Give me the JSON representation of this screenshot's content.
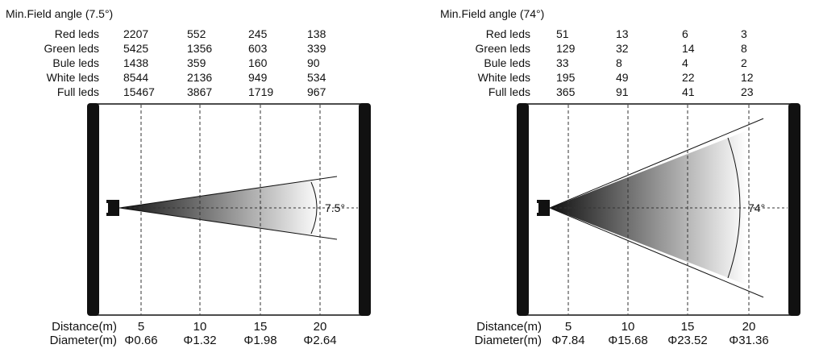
{
  "panels": [
    {
      "title": "Min.Field angle (7.5°)",
      "rows": [
        {
          "label": "Red leds",
          "values": [
            "2207",
            "552",
            "245",
            "138"
          ]
        },
        {
          "label": "Green leds",
          "values": [
            "5425",
            "1356",
            "603",
            "339"
          ]
        },
        {
          "label": "Bule leds",
          "values": [
            "1438",
            "359",
            "160",
            "90"
          ]
        },
        {
          "label": "White leds",
          "values": [
            "8544",
            "2136",
            "949",
            "534"
          ]
        },
        {
          "label": "Full leds",
          "values": [
            "15467",
            "3867",
            "1719",
            "967"
          ]
        }
      ],
      "angle_label": "7.5°",
      "distance_label": "Distance(m)",
      "distances": [
        "5",
        "10",
        "15",
        "20"
      ],
      "diameter_label": "Diameter(m)",
      "diameters": [
        "Φ0.66",
        "Φ1.32",
        "Φ1.98",
        "Φ2.64"
      ]
    },
    {
      "title": "Min.Field angle (74°)",
      "rows": [
        {
          "label": "Red leds",
          "values": [
            "51",
            "13",
            "6",
            "3"
          ]
        },
        {
          "label": "Green leds",
          "values": [
            "129",
            "32",
            "14",
            "8"
          ]
        },
        {
          "label": "Bule leds",
          "values": [
            "33",
            "8",
            "4",
            "2"
          ]
        },
        {
          "label": "White leds",
          "values": [
            "195",
            "49",
            "22",
            "12"
          ]
        },
        {
          "label": "Full leds",
          "values": [
            "365",
            "91",
            "41",
            "23"
          ]
        }
      ],
      "angle_label": "74°",
      "distance_label": "Distance(m)",
      "distances": [
        "5",
        "10",
        "15",
        "20"
      ],
      "diameter_label": "Diameter(m)",
      "diameters": [
        "Φ7.84",
        "Φ15.68",
        "Φ23.52",
        "Φ31.36"
      ]
    }
  ]
}
